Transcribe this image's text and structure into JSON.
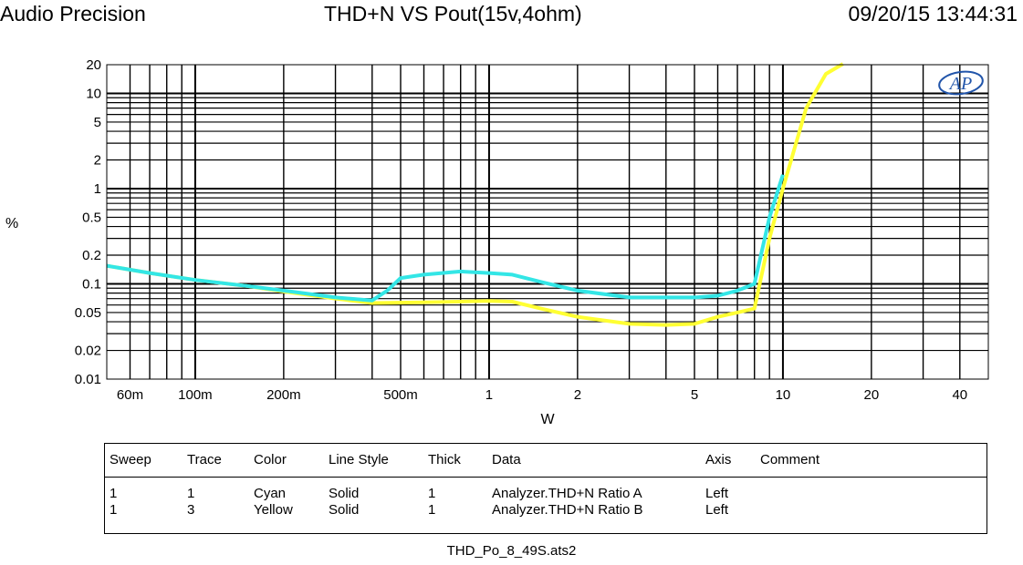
{
  "header": {
    "brand": "Audio Precision",
    "title": "THD+N VS Pout(15v,4ohm)",
    "timestamp": "09/20/15 13:44:31"
  },
  "logo_text": "AP",
  "chart_data": {
    "type": "line",
    "title": "THD+N VS Pout(15v,4ohm)",
    "xlabel": "W",
    "ylabel": "%",
    "x_scale": "log",
    "y_scale": "log",
    "xlim": [
      0.05,
      50
    ],
    "ylim": [
      0.01,
      20
    ],
    "grid": true,
    "x_ticks": [
      {
        "value": 0.06,
        "label": "60m"
      },
      {
        "value": 0.1,
        "label": "100m"
      },
      {
        "value": 0.2,
        "label": "200m"
      },
      {
        "value": 0.5,
        "label": "500m"
      },
      {
        "value": 1,
        "label": "1"
      },
      {
        "value": 2,
        "label": "2"
      },
      {
        "value": 5,
        "label": "5"
      },
      {
        "value": 10,
        "label": "10"
      },
      {
        "value": 20,
        "label": "20"
      },
      {
        "value": 40,
        "label": "40"
      }
    ],
    "y_ticks": [
      {
        "value": 20,
        "label": "20"
      },
      {
        "value": 10,
        "label": "10"
      },
      {
        "value": 5,
        "label": "5"
      },
      {
        "value": 2,
        "label": "2"
      },
      {
        "value": 1,
        "label": "1"
      },
      {
        "value": 0.5,
        "label": "0.5"
      },
      {
        "value": 0.2,
        "label": "0.2"
      },
      {
        "value": 0.1,
        "label": "0.1"
      },
      {
        "value": 0.05,
        "label": "0.05"
      },
      {
        "value": 0.02,
        "label": "0.02"
      },
      {
        "value": 0.01,
        "label": "0.01"
      }
    ],
    "series": [
      {
        "color": "#33e6e6",
        "points": [
          [
            0.05,
            0.155
          ],
          [
            0.07,
            0.13
          ],
          [
            0.1,
            0.11
          ],
          [
            0.15,
            0.095
          ],
          [
            0.2,
            0.085
          ],
          [
            0.3,
            0.072
          ],
          [
            0.4,
            0.067
          ],
          [
            0.45,
            0.085
          ],
          [
            0.5,
            0.115
          ],
          [
            0.6,
            0.125
          ],
          [
            0.8,
            0.135
          ],
          [
            1.0,
            0.13
          ],
          [
            1.2,
            0.125
          ],
          [
            1.5,
            0.105
          ],
          [
            2.0,
            0.085
          ],
          [
            3.0,
            0.072
          ],
          [
            5.0,
            0.072
          ],
          [
            6.0,
            0.075
          ],
          [
            7.0,
            0.085
          ],
          [
            8.0,
            0.1
          ],
          [
            9.0,
            0.5
          ],
          [
            10.0,
            1.4
          ]
        ]
      },
      {
        "color": "#ffff33",
        "points": [
          [
            0.05,
            0.155
          ],
          [
            0.07,
            0.13
          ],
          [
            0.1,
            0.11
          ],
          [
            0.15,
            0.095
          ],
          [
            0.2,
            0.083
          ],
          [
            0.3,
            0.07
          ],
          [
            0.4,
            0.063
          ],
          [
            0.6,
            0.064
          ],
          [
            1.0,
            0.066
          ],
          [
            1.2,
            0.065
          ],
          [
            1.5,
            0.055
          ],
          [
            2.0,
            0.045
          ],
          [
            3.0,
            0.038
          ],
          [
            4.0,
            0.037
          ],
          [
            5.0,
            0.038
          ],
          [
            6.0,
            0.045
          ],
          [
            7.0,
            0.05
          ],
          [
            8.0,
            0.055
          ],
          [
            9.0,
            0.3
          ],
          [
            10.0,
            1.0
          ],
          [
            12.0,
            7.0
          ],
          [
            14.0,
            16.0
          ],
          [
            16.0,
            22.0
          ]
        ]
      }
    ]
  },
  "legend": {
    "headers": [
      "Sweep",
      "Trace",
      "Color",
      "Line Style",
      "Thick",
      "Data",
      "Axis",
      "Comment"
    ],
    "rows": [
      [
        "1",
        "1",
        "Cyan",
        "Solid",
        "1",
        "Analyzer.THD+N Ratio A",
        "Left",
        ""
      ],
      [
        "1",
        "3",
        "Yellow",
        "Solid",
        "1",
        "Analyzer.THD+N Ratio B",
        "Left",
        ""
      ]
    ]
  },
  "footer": "THD_Po_8_49S.ats2"
}
